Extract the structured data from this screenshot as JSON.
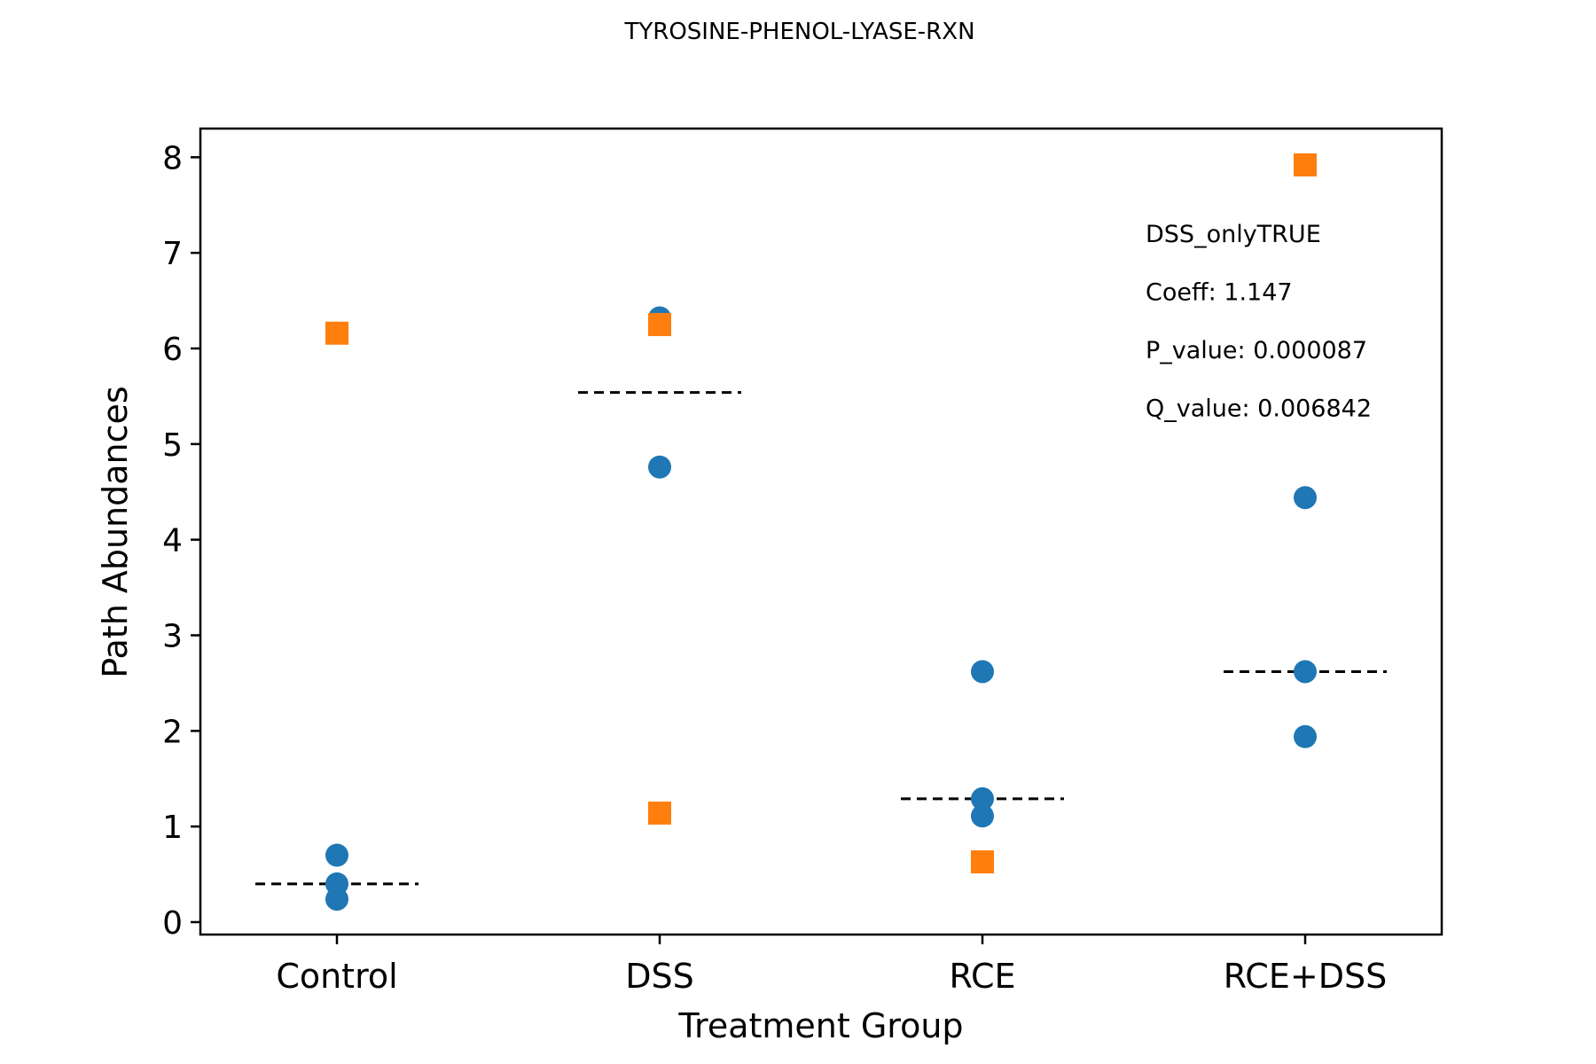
{
  "chart_data": {
    "type": "scatter",
    "title": "TYROSINE-PHENOL-LYASE-RXN",
    "xlabel": "Treatment Group",
    "ylabel": "Path Abundances",
    "categories": [
      "Control",
      "DSS",
      "RCE",
      "RCE+DSS"
    ],
    "ylim": [
      -0.13,
      8.3
    ],
    "yticks": [
      0,
      1,
      2,
      3,
      4,
      5,
      6,
      7,
      8
    ],
    "grid": false,
    "series": [
      {
        "marker": "circle",
        "color": "#1f77b4",
        "points": [
          {
            "category": "Control",
            "y": 0.7
          },
          {
            "category": "Control",
            "y": 0.4
          },
          {
            "category": "Control",
            "y": 0.24
          },
          {
            "category": "DSS",
            "y": 6.32
          },
          {
            "category": "DSS",
            "y": 4.76
          },
          {
            "category": "RCE",
            "y": 2.62
          },
          {
            "category": "RCE",
            "y": 1.29
          },
          {
            "category": "RCE",
            "y": 1.11
          },
          {
            "category": "RCE+DSS",
            "y": 4.44
          },
          {
            "category": "RCE+DSS",
            "y": 2.62
          },
          {
            "category": "RCE+DSS",
            "y": 1.94
          }
        ]
      },
      {
        "marker": "square",
        "color": "#ff7f0e",
        "points": [
          {
            "category": "Control",
            "y": 6.16
          },
          {
            "category": "DSS",
            "y": 6.25
          },
          {
            "category": "DSS",
            "y": 1.14
          },
          {
            "category": "RCE",
            "y": 0.63
          },
          {
            "category": "RCE+DSS",
            "y": 7.92
          }
        ]
      }
    ],
    "medians": [
      {
        "category": "Control",
        "y": 0.4
      },
      {
        "category": "DSS",
        "y": 5.54
      },
      {
        "category": "RCE",
        "y": 1.29
      },
      {
        "category": "RCE+DSS",
        "y": 2.62
      }
    ],
    "annotations": [
      "DSS_onlyTRUE",
      "Coeff: 1.147",
      "P_value: 0.000087",
      "Q_value: 0.006842"
    ]
  }
}
